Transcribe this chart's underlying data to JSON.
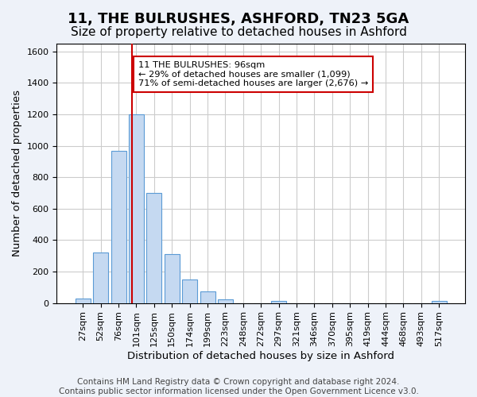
{
  "title": "11, THE BULRUSHES, ASHFORD, TN23 5GA",
  "subtitle": "Size of property relative to detached houses in Ashford",
  "xlabel": "Distribution of detached houses by size in Ashford",
  "ylabel": "Number of detached properties",
  "bar_labels": [
    "27sqm",
    "52sqm",
    "76sqm",
    "101sqm",
    "125sqm",
    "150sqm",
    "174sqm",
    "199sqm",
    "223sqm",
    "248sqm",
    "272sqm",
    "297sqm",
    "321sqm",
    "346sqm",
    "370sqm",
    "395sqm",
    "419sqm",
    "444sqm",
    "468sqm",
    "493sqm",
    "517sqm"
  ],
  "bar_values": [
    30,
    320,
    970,
    1200,
    700,
    310,
    150,
    75,
    22,
    0,
    0,
    15,
    0,
    0,
    0,
    0,
    0,
    0,
    0,
    0,
    15
  ],
  "bar_color": "#c5d9f1",
  "bar_edge_color": "#5b9bd5",
  "vline_x": 2.77,
  "vline_color": "#cc0000",
  "ylim": [
    0,
    1650
  ],
  "yticks": [
    0,
    200,
    400,
    600,
    800,
    1000,
    1200,
    1400,
    1600
  ],
  "annotation_text": "11 THE BULRUSHES: 96sqm\n← 29% of detached houses are smaller (1,099)\n71% of semi-detached houses are larger (2,676) →",
  "annotation_box_color": "#ffffff",
  "annotation_box_edge": "#cc0000",
  "footer_line1": "Contains HM Land Registry data © Crown copyright and database right 2024.",
  "footer_line2": "Contains public sector information licensed under the Open Government Licence v3.0.",
  "background_color": "#eef2f9",
  "plot_background_color": "#ffffff",
  "grid_color": "#cccccc",
  "title_fontsize": 13,
  "subtitle_fontsize": 11,
  "axis_label_fontsize": 9.5,
  "tick_fontsize": 8,
  "footer_fontsize": 7.5
}
